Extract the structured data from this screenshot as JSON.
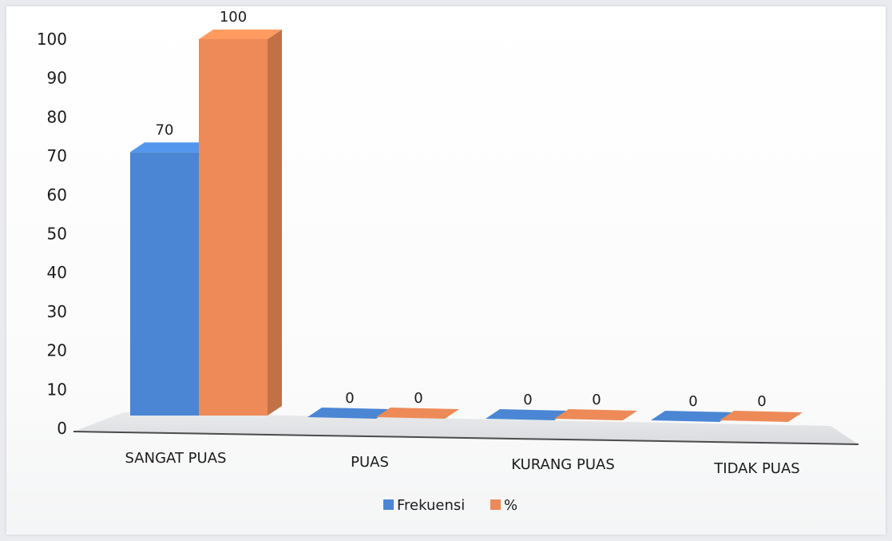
{
  "chart_data": {
    "type": "bar",
    "categories": [
      "SANGAT PUAS",
      "PUAS",
      "KURANG PUAS",
      "TIDAK PUAS"
    ],
    "series": [
      {
        "name": "Frekuensi",
        "values": [
          70,
          0,
          0,
          0
        ],
        "color": "#4a86d4"
      },
      {
        "name": "%",
        "values": [
          100,
          0,
          0,
          0
        ],
        "color": "#ed8a57"
      }
    ],
    "ylim": [
      0,
      100
    ],
    "yticks": [
      "0",
      "10",
      "20",
      "30",
      "40",
      "50",
      "60",
      "70",
      "80",
      "90",
      "100"
    ],
    "data_labels": true,
    "legend_position": "bottom",
    "grid": false,
    "style": "3d-column"
  }
}
